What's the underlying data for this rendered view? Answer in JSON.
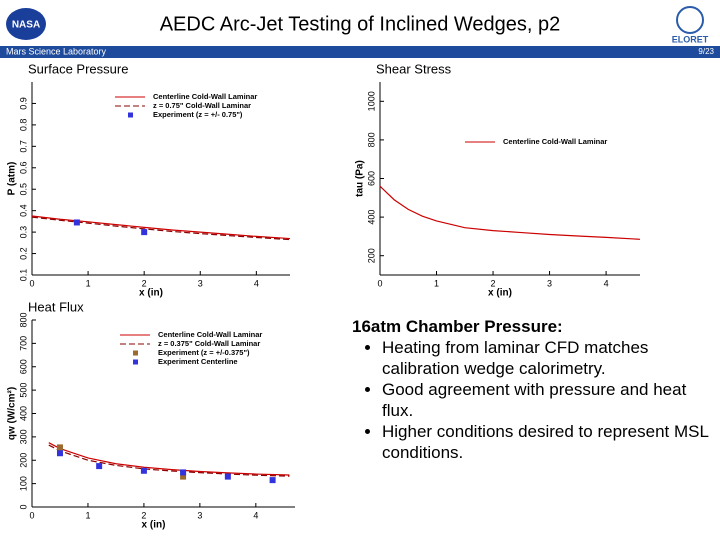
{
  "header": {
    "title": "AEDC Arc-Jet Testing of Inclined Wedges, p2",
    "left_logo": "NASA",
    "right_logo": "ELORET",
    "subtitle": "Mars Science Laboratory",
    "page": "9/23"
  },
  "chart_data": [
    {
      "type": "line",
      "title": "Surface Pressure",
      "x_label": "x (in)",
      "y_label": "P (atm)",
      "xlim": [
        0,
        4.6
      ],
      "xticks": [
        0,
        1,
        2,
        3,
        4
      ],
      "ylim": [
        0.1,
        1.0
      ],
      "yticks": [
        0.1,
        0.2,
        0.3,
        0.4,
        0.5,
        0.6,
        0.7,
        0.8,
        0.9
      ],
      "legend": "upper right",
      "series": [
        {
          "name": "Centerline Cold-Wall Laminar",
          "color": "#cc0000",
          "style": "solid",
          "x": [
            0,
            0.5,
            1,
            1.5,
            2,
            2.5,
            3,
            3.5,
            4,
            4.6
          ],
          "values": [
            0.375,
            0.36,
            0.348,
            0.335,
            0.322,
            0.31,
            0.3,
            0.29,
            0.28,
            0.27
          ]
        },
        {
          "name": "z = 0.75\" Cold-Wall Laminar",
          "color": "#8b0000",
          "style": "dashed",
          "x": [
            0,
            0.5,
            1,
            1.5,
            2,
            2.5,
            3,
            3.5,
            4,
            4.6
          ],
          "values": [
            0.37,
            0.355,
            0.342,
            0.328,
            0.315,
            0.303,
            0.293,
            0.284,
            0.275,
            0.265
          ]
        },
        {
          "name": "Experiment (z = +/- 0.75\")",
          "color": "#3333dd",
          "style": "markers",
          "x": [
            0.8,
            2.0
          ],
          "values": [
            0.345,
            0.3
          ]
        }
      ]
    },
    {
      "type": "line",
      "title": "Shear Stress",
      "x_label": "x (in)",
      "y_label": "tau (Pa)",
      "xlim": [
        0,
        4.6
      ],
      "xticks": [
        0,
        1,
        2,
        3,
        4
      ],
      "ylim": [
        100,
        1100
      ],
      "yticks": [
        200,
        400,
        600,
        800,
        1000
      ],
      "legend": "upper right",
      "series": [
        {
          "name": "Centerline Cold-Wall Laminar",
          "color": "#cc0000",
          "style": "solid",
          "x": [
            0,
            0.25,
            0.5,
            0.75,
            1,
            1.5,
            2,
            2.5,
            3,
            3.5,
            4,
            4.6
          ],
          "values": [
            560,
            490,
            440,
            405,
            380,
            345,
            330,
            320,
            310,
            302,
            295,
            285
          ]
        }
      ]
    },
    {
      "type": "line",
      "title": "Heat Flux",
      "x_label": "x (in)",
      "y_label": "qw (W/cm²)",
      "xlim": [
        0,
        4.7
      ],
      "xticks": [
        0,
        1,
        2,
        3,
        4
      ],
      "ylim": [
        0,
        800
      ],
      "yticks": [
        0,
        100,
        200,
        300,
        400,
        500,
        600,
        700,
        800
      ],
      "legend": "upper right",
      "series": [
        {
          "name": "Centerline Cold-Wall Laminar",
          "color": "#cc0000",
          "style": "solid",
          "x": [
            0.3,
            0.5,
            1,
            1.5,
            2,
            2.5,
            3,
            3.5,
            4,
            4.6
          ],
          "values": [
            275,
            250,
            210,
            185,
            170,
            160,
            152,
            146,
            141,
            137
          ]
        },
        {
          "name": "z = 0.375\" Cold-Wall Laminar",
          "color": "#8b0000",
          "style": "dashed",
          "x": [
            0.3,
            0.5,
            1,
            1.5,
            2,
            2.5,
            3,
            3.5,
            4,
            4.6
          ],
          "values": [
            265,
            240,
            200,
            178,
            163,
            154,
            147,
            141,
            136,
            132
          ]
        },
        {
          "name": "Experiment (z = +/-0.375\")",
          "color": "#9b6a2f",
          "style": "markers",
          "x": [
            0.5,
            2.7
          ],
          "values": [
            255,
            130
          ]
        },
        {
          "name": "Experiment Centerline",
          "color": "#3333dd",
          "style": "markers",
          "x": [
            0.5,
            1.2,
            2.0,
            2.7,
            3.5,
            4.3
          ],
          "values": [
            230,
            175,
            155,
            148,
            130,
            115
          ]
        }
      ]
    }
  ],
  "notes": {
    "heading": "16atm Chamber Pressure:",
    "bullets": [
      "Heating from laminar CFD matches calibration wedge calorimetry.",
      "Good agreement with pressure and heat flux.",
      "Higher conditions desired to represent MSL conditions."
    ]
  }
}
